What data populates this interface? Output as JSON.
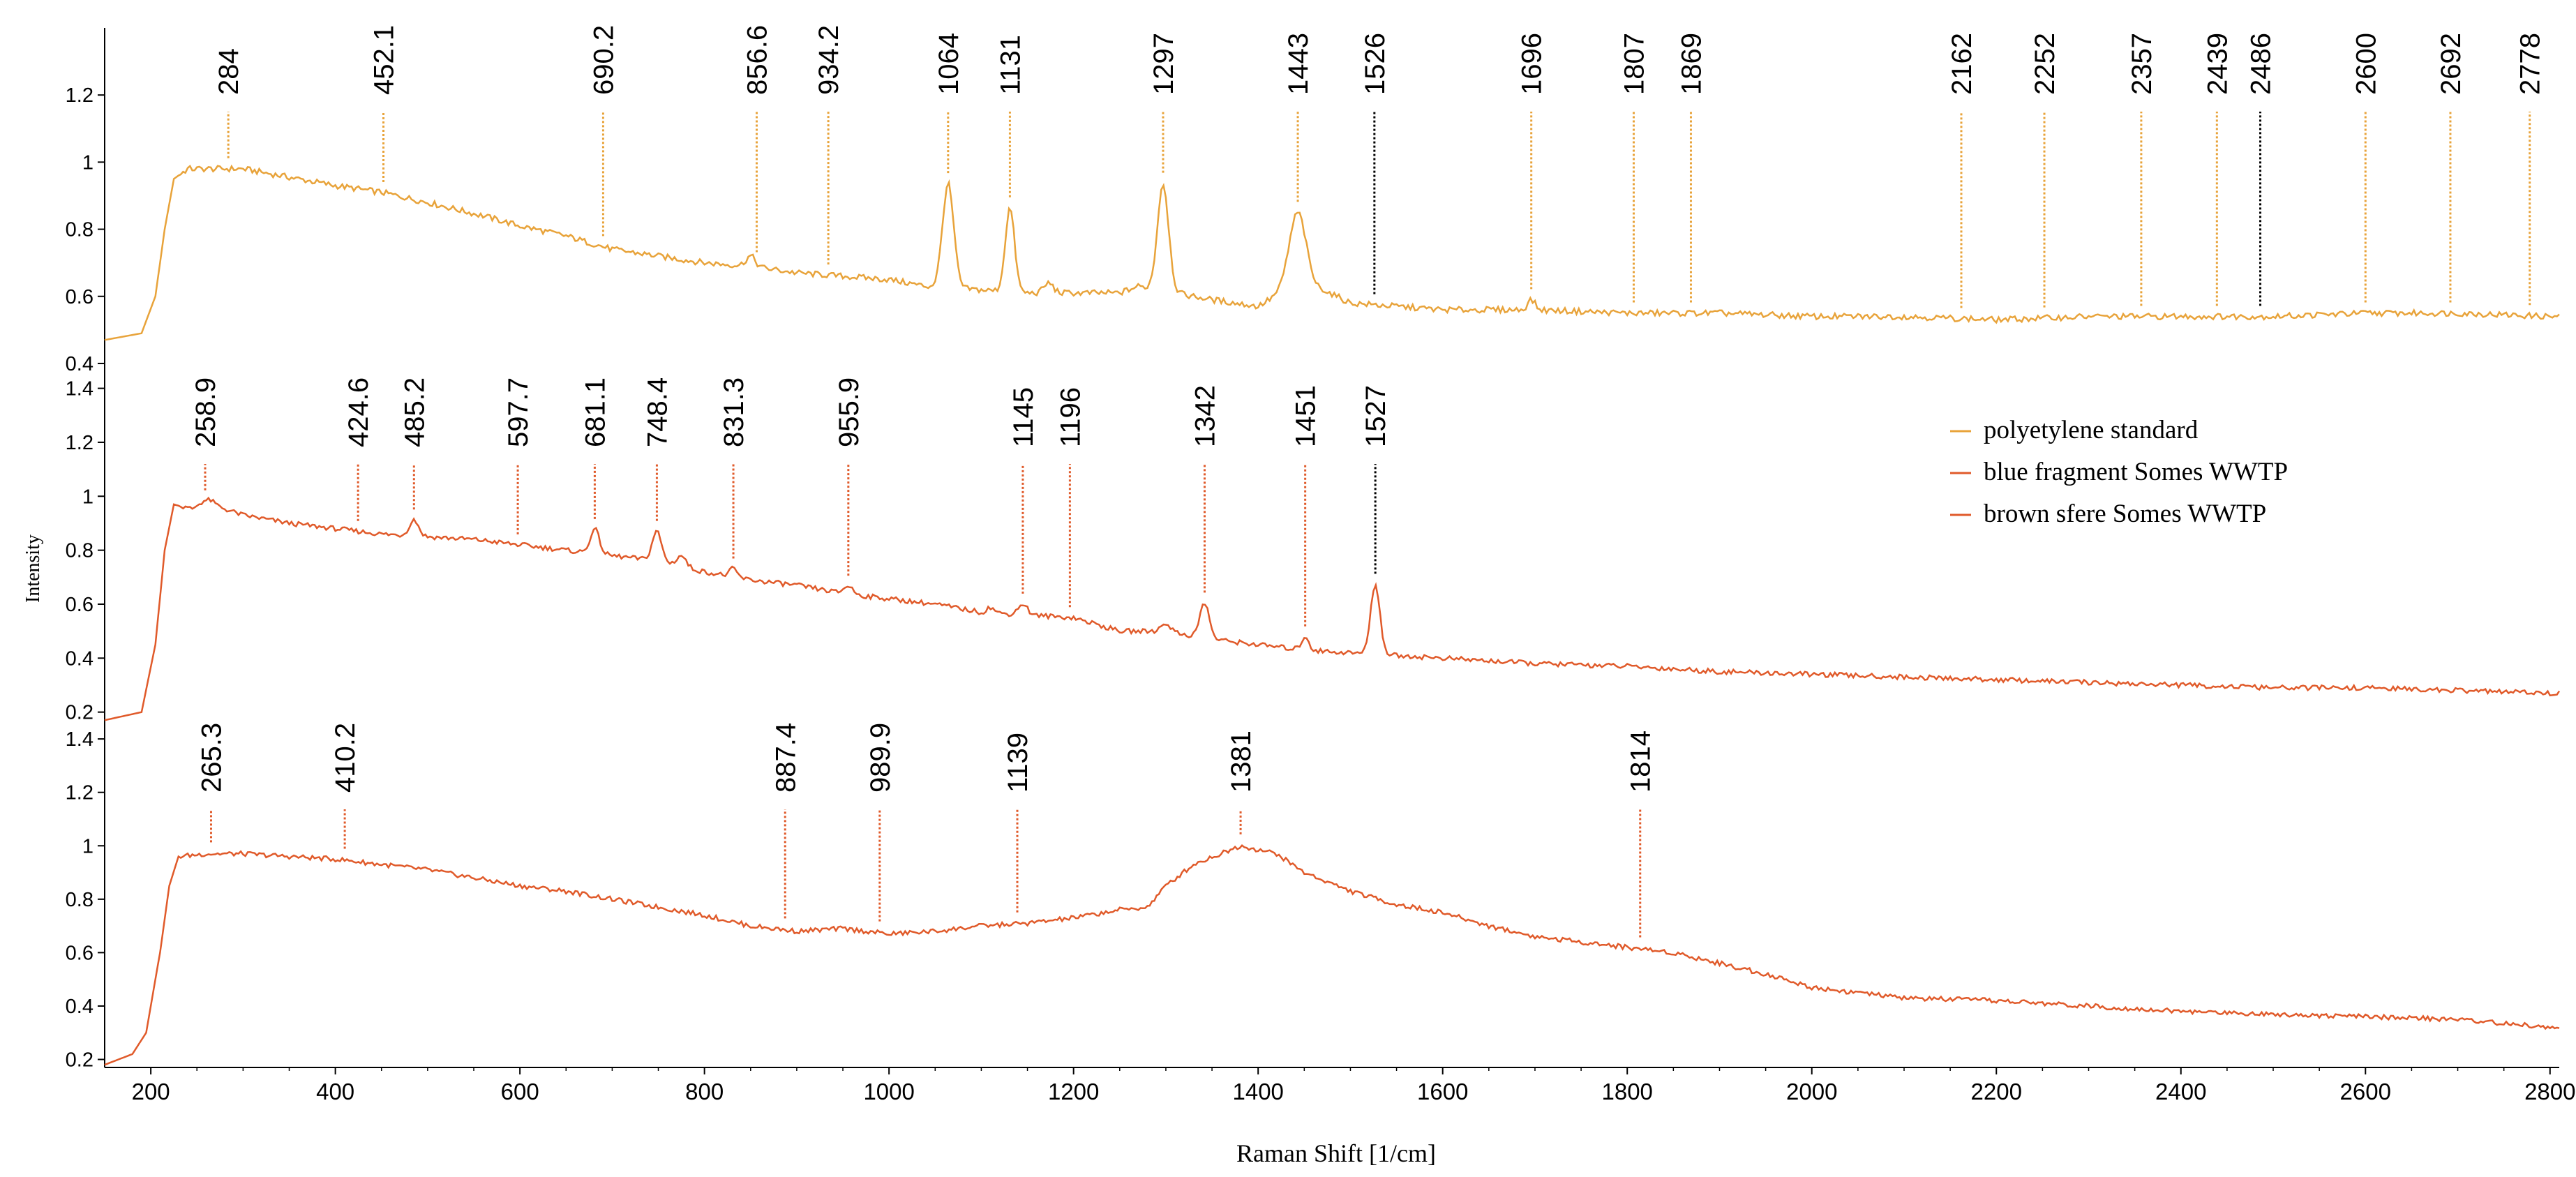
{
  "chart_data": {
    "type": "line",
    "xlabel": "Raman Shift [1/cm]",
    "ylabel": "Intensity",
    "xlim": [
      150,
      2810
    ],
    "x_ticks": [
      "200",
      "400",
      "600",
      "800",
      "1000",
      "1200",
      "1400",
      "1600",
      "1800",
      "2000",
      "2200",
      "2400",
      "2600",
      "2800"
    ],
    "grid": false,
    "legend_position": "right-middle",
    "panels": [
      {
        "name": "polyetylene standard",
        "color": "#e8a33a",
        "ylim": [
          0.35,
          1.4
        ],
        "y_ticks": [
          "0.4",
          "0.6",
          "0.8",
          "1",
          "1.2"
        ],
        "y_tick_values": [
          0.4,
          0.6,
          0.8,
          1.0,
          1.2
        ],
        "curve": [
          [
            150,
            0.47
          ],
          [
            190,
            0.49
          ],
          [
            205,
            0.6
          ],
          [
            215,
            0.8
          ],
          [
            225,
            0.95
          ],
          [
            240,
            0.98
          ],
          [
            270,
            0.98
          ],
          [
            300,
            0.98
          ],
          [
            340,
            0.96
          ],
          [
            400,
            0.93
          ],
          [
            450,
            0.91
          ],
          [
            500,
            0.88
          ],
          [
            560,
            0.84
          ],
          [
            600,
            0.81
          ],
          [
            650,
            0.78
          ],
          [
            700,
            0.74
          ],
          [
            750,
            0.72
          ],
          [
            800,
            0.7
          ],
          [
            850,
            0.69
          ],
          [
            900,
            0.67
          ],
          [
            950,
            0.66
          ],
          [
            1000,
            0.65
          ],
          [
            1040,
            0.63
          ],
          [
            1150,
            0.61
          ],
          [
            1250,
            0.61
          ],
          [
            1270,
            0.63
          ],
          [
            1350,
            0.59
          ],
          [
            1400,
            0.57
          ],
          [
            1430,
            0.62
          ],
          [
            1470,
            0.62
          ],
          [
            1500,
            0.58
          ],
          [
            1550,
            0.57
          ],
          [
            1600,
            0.56
          ],
          [
            1700,
            0.56
          ],
          [
            1800,
            0.55
          ],
          [
            1900,
            0.55
          ],
          [
            2000,
            0.54
          ],
          [
            2100,
            0.54
          ],
          [
            2200,
            0.53
          ],
          [
            2300,
            0.54
          ],
          [
            2400,
            0.54
          ],
          [
            2500,
            0.54
          ],
          [
            2600,
            0.55
          ],
          [
            2700,
            0.55
          ],
          [
            2800,
            0.54
          ]
        ],
        "peaks": [
          [
            1064,
            0.31,
            6
          ],
          [
            1131,
            0.25,
            5
          ],
          [
            1297,
            0.32,
            6
          ],
          [
            1443,
            0.23,
            9
          ],
          [
            1173,
            0.03,
            5
          ],
          [
            850,
            0.03,
            5
          ],
          [
            1696,
            0.03,
            4
          ]
        ],
        "labels": [
          {
            "text": "284",
            "x": 284,
            "color": "#e8a33a"
          },
          {
            "text": "452.1",
            "x": 452.1,
            "color": "#e8a33a"
          },
          {
            "text": "690.2",
            "x": 690.2,
            "color": "#e8a33a"
          },
          {
            "text": "856.6",
            "x": 856.6,
            "color": "#e8a33a"
          },
          {
            "text": "934.2",
            "x": 934.2,
            "color": "#e8a33a"
          },
          {
            "text": "1064",
            "x": 1064,
            "color": "#e8a33a"
          },
          {
            "text": "1131",
            "x": 1131,
            "color": "#e8a33a"
          },
          {
            "text": "1297",
            "x": 1297,
            "color": "#e8a33a"
          },
          {
            "text": "1443",
            "x": 1443,
            "color": "#e8a33a"
          },
          {
            "text": "1526",
            "x": 1526,
            "color": "#000000"
          },
          {
            "text": "1696",
            "x": 1696,
            "color": "#e8a33a"
          },
          {
            "text": "1807",
            "x": 1807,
            "color": "#e8a33a"
          },
          {
            "text": "1869",
            "x": 1869,
            "color": "#e8a33a"
          },
          {
            "text": "2162",
            "x": 2162,
            "color": "#e8a33a"
          },
          {
            "text": "2252",
            "x": 2252,
            "color": "#e8a33a"
          },
          {
            "text": "2357",
            "x": 2357,
            "color": "#e8a33a"
          },
          {
            "text": "2439",
            "x": 2439,
            "color": "#e8a33a"
          },
          {
            "text": "2486",
            "x": 2486,
            "color": "#000000"
          },
          {
            "text": "2600",
            "x": 2600,
            "color": "#e8a33a"
          },
          {
            "text": "2692",
            "x": 2692,
            "color": "#e8a33a"
          },
          {
            "text": "2778",
            "x": 2778,
            "color": "#e8a33a"
          }
        ]
      },
      {
        "name": "blue fragment Somes WWTP",
        "color": "#e05a2a",
        "ylim": [
          0.15,
          1.43
        ],
        "y_ticks": [
          "0.2",
          "0.4",
          "0.6",
          "0.8",
          "1",
          "1.2",
          "1.4"
        ],
        "y_tick_values": [
          0.2,
          0.4,
          0.6,
          0.8,
          1.0,
          1.2,
          1.4
        ],
        "curve": [
          [
            150,
            0.17
          ],
          [
            190,
            0.2
          ],
          [
            205,
            0.45
          ],
          [
            215,
            0.8
          ],
          [
            225,
            0.97
          ],
          [
            245,
            0.95
          ],
          [
            265,
            0.97
          ],
          [
            300,
            0.93
          ],
          [
            350,
            0.9
          ],
          [
            400,
            0.88
          ],
          [
            450,
            0.86
          ],
          [
            500,
            0.85
          ],
          [
            550,
            0.84
          ],
          [
            600,
            0.82
          ],
          [
            650,
            0.8
          ],
          [
            700,
            0.78
          ],
          [
            750,
            0.76
          ],
          [
            800,
            0.72
          ],
          [
            850,
            0.69
          ],
          [
            900,
            0.67
          ],
          [
            950,
            0.64
          ],
          [
            1000,
            0.62
          ],
          [
            1050,
            0.6
          ],
          [
            1100,
            0.57
          ],
          [
            1150,
            0.56
          ],
          [
            1200,
            0.55
          ],
          [
            1250,
            0.5
          ],
          [
            1300,
            0.5
          ],
          [
            1350,
            0.47
          ],
          [
            1400,
            0.45
          ],
          [
            1450,
            0.43
          ],
          [
            1500,
            0.42
          ],
          [
            1550,
            0.41
          ],
          [
            1600,
            0.4
          ],
          [
            1700,
            0.38
          ],
          [
            1800,
            0.37
          ],
          [
            1900,
            0.35
          ],
          [
            2000,
            0.34
          ],
          [
            2100,
            0.33
          ],
          [
            2200,
            0.32
          ],
          [
            2300,
            0.31
          ],
          [
            2400,
            0.3
          ],
          [
            2500,
            0.29
          ],
          [
            2600,
            0.29
          ],
          [
            2700,
            0.28
          ],
          [
            2800,
            0.27
          ]
        ],
        "peaks": [
          [
            485.2,
            0.06,
            5
          ],
          [
            681.1,
            0.09,
            5
          ],
          [
            748.4,
            0.11,
            5
          ],
          [
            775,
            0.04,
            5
          ],
          [
            831.3,
            0.03,
            4
          ],
          [
            955.9,
            0.03,
            5
          ],
          [
            1145,
            0.04,
            5
          ],
          [
            1110,
            0.02,
            4
          ],
          [
            1342,
            0.13,
            5
          ],
          [
            1300,
            0.03,
            5
          ],
          [
            1451,
            0.05,
            4
          ],
          [
            1527,
            0.26,
            5
          ],
          [
            258.9,
            0.02,
            8
          ]
        ],
        "labels": [
          {
            "text": "258.9",
            "x": 258.9,
            "color": "#e05a2a"
          },
          {
            "text": "424.6",
            "x": 424.6,
            "color": "#e05a2a"
          },
          {
            "text": "485.2",
            "x": 485.2,
            "color": "#e05a2a"
          },
          {
            "text": "597.7",
            "x": 597.7,
            "color": "#e05a2a"
          },
          {
            "text": "681.1",
            "x": 681.1,
            "color": "#e05a2a"
          },
          {
            "text": "748.4",
            "x": 748.4,
            "color": "#e05a2a"
          },
          {
            "text": "831.3",
            "x": 831.3,
            "color": "#e05a2a"
          },
          {
            "text": "955.9",
            "x": 955.9,
            "color": "#e05a2a"
          },
          {
            "text": "1145",
            "x": 1145,
            "color": "#e05a2a"
          },
          {
            "text": "1196",
            "x": 1196,
            "color": "#e05a2a"
          },
          {
            "text": "1342",
            "x": 1342,
            "color": "#e05a2a"
          },
          {
            "text": "1451",
            "x": 1451,
            "color": "#e05a2a"
          },
          {
            "text": "1527",
            "x": 1527,
            "color": "#000000"
          }
        ]
      },
      {
        "name": "brown sfere Somes WWTP",
        "color": "#e05a2a",
        "ylim": [
          0.17,
          1.45
        ],
        "y_ticks": [
          "0.2",
          "0.4",
          "0.6",
          "0.8",
          "1",
          "1.2",
          "1.4"
        ],
        "y_tick_values": [
          0.2,
          0.4,
          0.6,
          0.8,
          1.0,
          1.2,
          1.4
        ],
        "curve": [
          [
            150,
            0.18
          ],
          [
            180,
            0.22
          ],
          [
            195,
            0.3
          ],
          [
            210,
            0.6
          ],
          [
            220,
            0.85
          ],
          [
            230,
            0.96
          ],
          [
            260,
            0.97
          ],
          [
            300,
            0.97
          ],
          [
            350,
            0.96
          ],
          [
            400,
            0.95
          ],
          [
            450,
            0.93
          ],
          [
            500,
            0.91
          ],
          [
            550,
            0.88
          ],
          [
            600,
            0.85
          ],
          [
            650,
            0.83
          ],
          [
            700,
            0.8
          ],
          [
            750,
            0.77
          ],
          [
            800,
            0.74
          ],
          [
            850,
            0.7
          ],
          [
            900,
            0.68
          ],
          [
            950,
            0.69
          ],
          [
            1000,
            0.67
          ],
          [
            1050,
            0.68
          ],
          [
            1100,
            0.7
          ],
          [
            1150,
            0.71
          ],
          [
            1200,
            0.73
          ],
          [
            1250,
            0.76
          ],
          [
            1280,
            0.77
          ],
          [
            1300,
            0.85
          ],
          [
            1330,
            0.93
          ],
          [
            1381,
            1.0
          ],
          [
            1420,
            0.97
          ],
          [
            1450,
            0.9
          ],
          [
            1500,
            0.83
          ],
          [
            1550,
            0.78
          ],
          [
            1600,
            0.75
          ],
          [
            1650,
            0.7
          ],
          [
            1700,
            0.66
          ],
          [
            1750,
            0.64
          ],
          [
            1800,
            0.62
          ],
          [
            1850,
            0.6
          ],
          [
            1900,
            0.56
          ],
          [
            1950,
            0.52
          ],
          [
            2000,
            0.47
          ],
          [
            2050,
            0.45
          ],
          [
            2100,
            0.43
          ],
          [
            2200,
            0.42
          ],
          [
            2300,
            0.4
          ],
          [
            2400,
            0.38
          ],
          [
            2500,
            0.37
          ],
          [
            2600,
            0.36
          ],
          [
            2700,
            0.35
          ],
          [
            2800,
            0.32
          ]
        ],
        "peaks": [],
        "labels": [
          {
            "text": "265.3",
            "x": 265.3,
            "color": "#e05a2a"
          },
          {
            "text": "410.2",
            "x": 410.2,
            "color": "#e05a2a"
          },
          {
            "text": "887.4",
            "x": 887.4,
            "color": "#e05a2a"
          },
          {
            "text": "989.9",
            "x": 989.9,
            "color": "#e05a2a"
          },
          {
            "text": "1139",
            "x": 1139,
            "color": "#e05a2a"
          },
          {
            "text": "1381",
            "x": 1381,
            "color": "#e05a2a"
          },
          {
            "text": "1814",
            "x": 1814,
            "color": "#e05a2a"
          }
        ]
      }
    ],
    "legend": [
      {
        "label": "polyetylene standard",
        "color": "#e8a33a"
      },
      {
        "label": "blue fragment Somes WWTP",
        "color": "#e05a2a"
      },
      {
        "label": "brown sfere Somes WWTP",
        "color": "#e05a2a"
      }
    ]
  }
}
